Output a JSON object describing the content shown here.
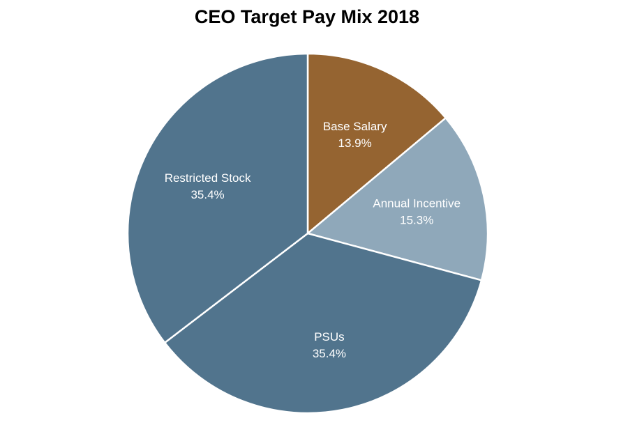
{
  "chart_data": {
    "type": "pie",
    "title": "CEO Target Pay Mix 2018",
    "start_angle_deg": 0,
    "direction": "clockwise",
    "slices": [
      {
        "name": "Base Salary",
        "value": 13.9,
        "label": "13.9%",
        "color": "#956431"
      },
      {
        "name": "Annual Incentive",
        "value": 15.3,
        "label": "15.3%",
        "color": "#8fa8ba"
      },
      {
        "name": "PSUs",
        "value": 35.4,
        "label": "35.4%",
        "color": "#51748d"
      },
      {
        "name": "Restricted Stock",
        "value": 35.4,
        "label": "35.4%",
        "color": "#51748d"
      }
    ],
    "legend": "none",
    "data_labels": "inside"
  }
}
